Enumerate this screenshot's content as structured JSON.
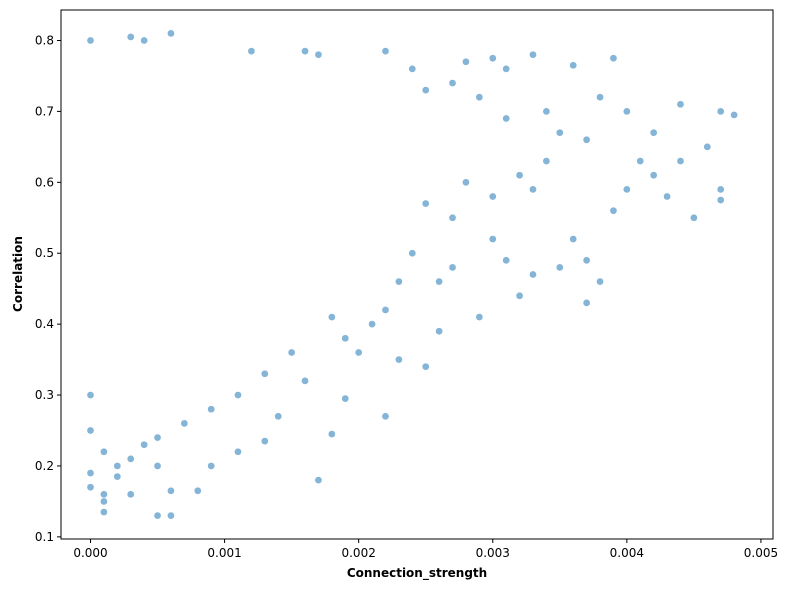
{
  "chart_data": {
    "type": "scatter",
    "title": "",
    "xlabel": "Connection_strength",
    "ylabel": "Correlation",
    "xlim": [
      -0.00022,
      0.00509
    ],
    "ylim": [
      0.097,
      0.843
    ],
    "x_ticks": [
      0.0,
      0.001,
      0.002,
      0.003,
      0.004,
      0.005
    ],
    "x_tick_labels": [
      "0.000",
      "0.001",
      "0.002",
      "0.003",
      "0.004",
      "0.005"
    ],
    "y_ticks": [
      0.1,
      0.2,
      0.3,
      0.4,
      0.5,
      0.6,
      0.7,
      0.8
    ],
    "y_tick_labels": [
      "0.1",
      "0.2",
      "0.3",
      "0.4",
      "0.5",
      "0.6",
      "0.7",
      "0.8"
    ],
    "grid": false,
    "legend": "none",
    "marker_color": "#1f77b4",
    "marker_edge": "#ffffff",
    "marker_alpha": 0.55,
    "series": [
      {
        "points": [
          [
            0.0,
            0.8
          ],
          [
            0.0,
            0.17
          ],
          [
            0.0001,
            0.15
          ],
          [
            0.0001,
            0.16
          ],
          [
            0.0001,
            0.135
          ],
          [
            0.0002,
            0.185
          ],
          [
            0.0003,
            0.16
          ],
          [
            0.0004,
            0.23
          ],
          [
            0.0005,
            0.13
          ],
          [
            0.0005,
            0.2
          ],
          [
            0.0006,
            0.13
          ],
          [
            0.0006,
            0.165
          ],
          [
            0.0006,
            0.81
          ],
          [
            0.0004,
            0.8
          ],
          [
            0.0003,
            0.805
          ],
          [
            0.0008,
            0.165
          ],
          [
            0.0009,
            0.2
          ],
          [
            0.0011,
            0.22
          ],
          [
            0.0013,
            0.235
          ],
          [
            0.0014,
            0.27
          ],
          [
            0.0017,
            0.18
          ],
          [
            0.0019,
            0.295
          ],
          [
            0.0018,
            0.245
          ],
          [
            0.0022,
            0.27
          ],
          [
            0.0016,
            0.32
          ],
          [
            0.002,
            0.36
          ],
          [
            0.0023,
            0.35
          ],
          [
            0.0025,
            0.34
          ],
          [
            0.0026,
            0.39
          ],
          [
            0.0029,
            0.41
          ],
          [
            0.003,
            0.52
          ],
          [
            0.0031,
            0.49
          ],
          [
            0.0032,
            0.44
          ],
          [
            0.0033,
            0.47
          ],
          [
            0.0035,
            0.48
          ],
          [
            0.0037,
            0.43
          ],
          [
            0.0038,
            0.46
          ],
          [
            0.0037,
            0.49
          ],
          [
            0.0036,
            0.52
          ],
          [
            0.0039,
            0.56
          ],
          [
            0.004,
            0.59
          ],
          [
            0.0041,
            0.63
          ],
          [
            0.0042,
            0.61
          ],
          [
            0.0043,
            0.58
          ],
          [
            0.0044,
            0.63
          ],
          [
            0.0045,
            0.55
          ],
          [
            0.0046,
            0.65
          ],
          [
            0.0047,
            0.59
          ],
          [
            0.0047,
            0.575
          ],
          [
            0.0047,
            0.7
          ],
          [
            0.0048,
            0.695
          ],
          [
            0.0044,
            0.71
          ],
          [
            0.0042,
            0.67
          ],
          [
            0.004,
            0.7
          ],
          [
            0.0038,
            0.72
          ],
          [
            0.0039,
            0.775
          ],
          [
            0.0036,
            0.765
          ],
          [
            0.0033,
            0.78
          ],
          [
            0.0031,
            0.76
          ],
          [
            0.003,
            0.775
          ],
          [
            0.0028,
            0.77
          ],
          [
            0.0024,
            0.76
          ],
          [
            0.0022,
            0.785
          ],
          [
            0.0016,
            0.785
          ],
          [
            0.0012,
            0.785
          ],
          [
            0.0017,
            0.78
          ],
          [
            0.0025,
            0.73
          ],
          [
            0.0027,
            0.74
          ],
          [
            0.0029,
            0.72
          ],
          [
            0.0031,
            0.69
          ],
          [
            0.0034,
            0.7
          ],
          [
            0.0035,
            0.67
          ],
          [
            0.0037,
            0.66
          ],
          [
            0.0034,
            0.63
          ],
          [
            0.0032,
            0.61
          ],
          [
            0.0033,
            0.59
          ],
          [
            0.003,
            0.58
          ],
          [
            0.0028,
            0.6
          ],
          [
            0.0027,
            0.55
          ],
          [
            0.0025,
            0.57
          ],
          [
            0.0024,
            0.5
          ],
          [
            0.0026,
            0.46
          ],
          [
            0.0027,
            0.48
          ],
          [
            0.0023,
            0.46
          ],
          [
            0.0022,
            0.42
          ],
          [
            0.0021,
            0.4
          ],
          [
            0.0019,
            0.38
          ],
          [
            0.0018,
            0.41
          ],
          [
            0.0015,
            0.36
          ],
          [
            0.0013,
            0.33
          ],
          [
            0.0011,
            0.3
          ],
          [
            0.0009,
            0.28
          ],
          [
            0.0007,
            0.26
          ],
          [
            0.0005,
            0.24
          ],
          [
            0.0003,
            0.21
          ],
          [
            0.0002,
            0.2
          ],
          [
            0.0001,
            0.22
          ],
          [
            0.0,
            0.19
          ],
          [
            0.0,
            0.25
          ],
          [
            0.0,
            0.3
          ]
        ]
      }
    ]
  }
}
